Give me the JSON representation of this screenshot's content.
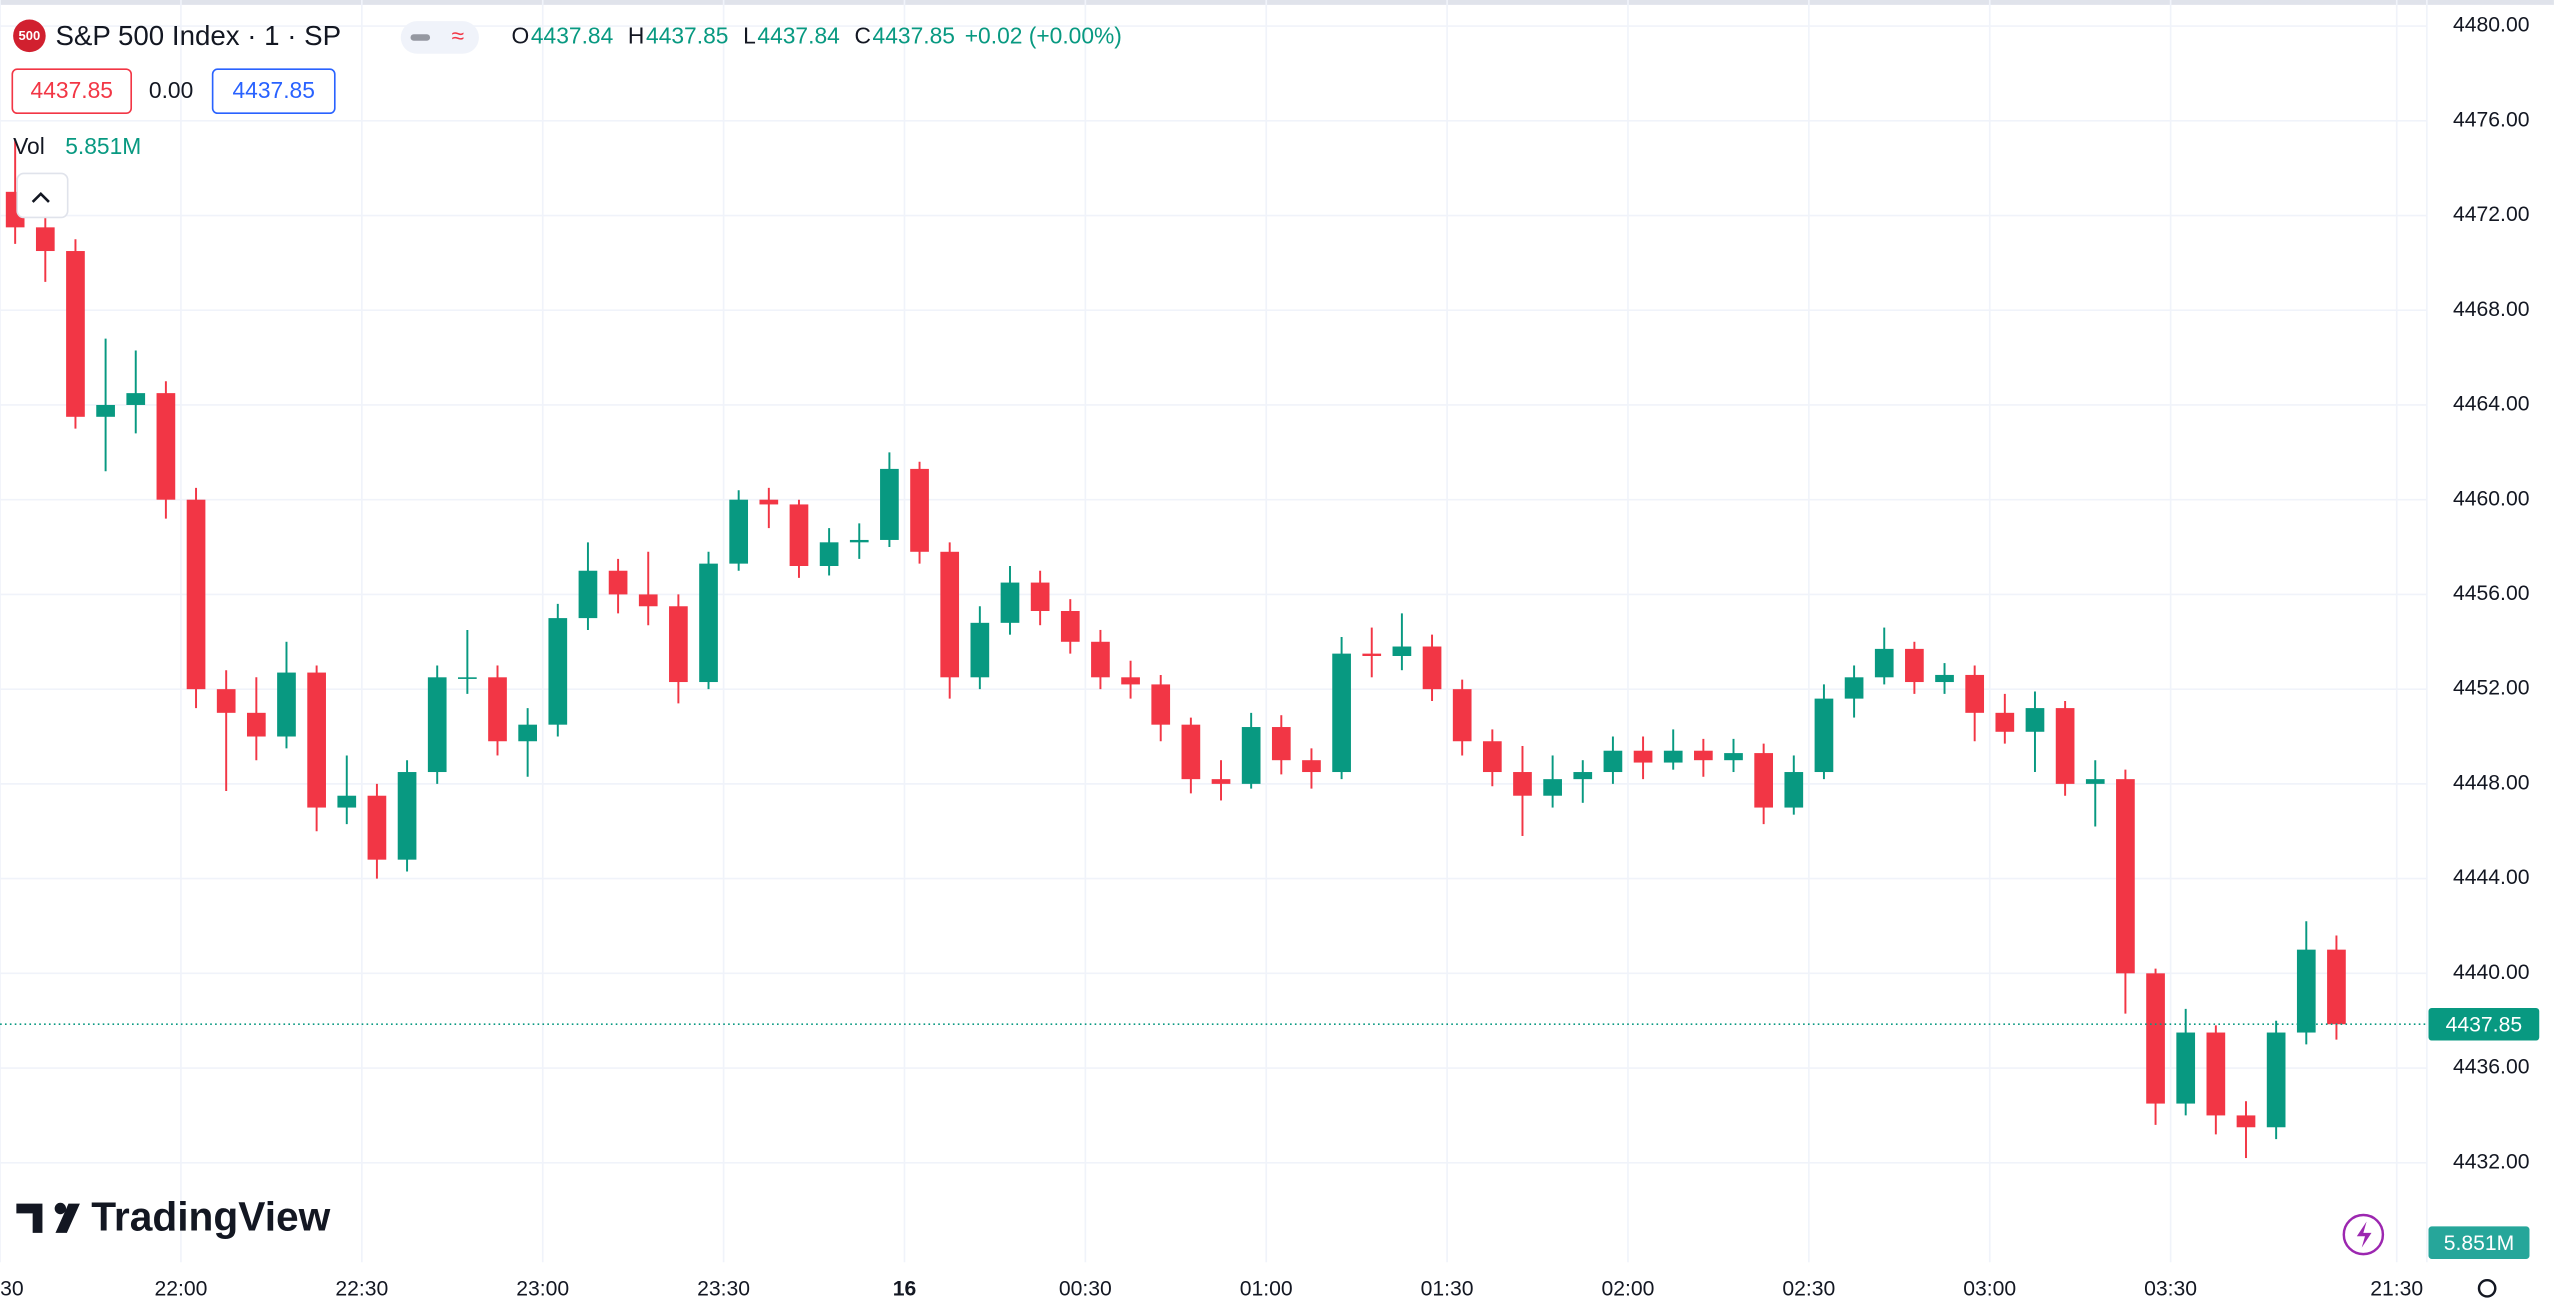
{
  "header": {
    "logo": "500",
    "symbol": "S&P 500 Index · 1 · SP",
    "ohlc": [
      {
        "key": "O",
        "value": "4437.84"
      },
      {
        "key": "H",
        "value": "4437.85"
      },
      {
        "key": "L",
        "value": "4437.84"
      },
      {
        "key": "C",
        "value": "4437.85"
      }
    ],
    "change": "+0.02 (+0.00%)",
    "sell": "4437.85",
    "spread": "0.00",
    "buy": "4437.85",
    "volume_label": "Vol",
    "volume_value": "5.851M"
  },
  "brand": "TradingView",
  "chart_data": {
    "type": "candlestick",
    "up_color": "#089981",
    "down_color": "#f23645",
    "open": [
      4473,
      4471.5,
      4470.5,
      4463.5,
      4464,
      4464.5,
      4460,
      4452,
      4451,
      4450,
      4452.7,
      4447,
      4447.5,
      4444.8,
      4448.5,
      4452.5,
      4452.5,
      4449.8,
      4450.5,
      4455,
      4457,
      4456,
      4455.5,
      4452.3,
      4457.3,
      4460,
      4459.8,
      4457.2,
      4458.2,
      4458.3,
      4461.3,
      4457.8,
      4452.5,
      4454.8,
      4456.5,
      4455.3,
      4454,
      4452.5,
      4452.2,
      4450.5,
      4448.2,
      4448,
      4450.4,
      4449,
      4448.5,
      4453.5,
      4453.4,
      4453.8,
      4452,
      4449.8,
      4448.5,
      4447.5,
      4448.2,
      4448.5,
      4449.4,
      4448.9,
      4449.4,
      4449,
      4449.3,
      4447,
      4448.5,
      4451.6,
      4452.5,
      4453.7,
      4452.3,
      4452.6,
      4451,
      4450.2,
      4451.2,
      4448,
      4448.2,
      4440,
      4434.5,
      4437.5,
      4434,
      4433.5,
      4437.5,
      4441
    ],
    "high": [
      4475.2,
      4473.5,
      4471,
      4466.8,
      4466.3,
      4465,
      4460.5,
      4452.8,
      4452.5,
      4454,
      4453,
      4449.2,
      4448,
      4449,
      4453,
      4454.5,
      4453,
      4451.2,
      4455.6,
      4458.2,
      4457.5,
      4457.8,
      4456,
      4457.8,
      4460.4,
      4460.5,
      4460,
      4458.8,
      4459,
      4462,
      4461.6,
      4458.2,
      4455.5,
      4457.2,
      4457,
      4455.8,
      4454.5,
      4453.2,
      4452.6,
      4450.8,
      4449,
      4451,
      4450.9,
      4449.5,
      4454.2,
      4454.6,
      4455.2,
      4454.3,
      4452.4,
      4450.3,
      4449.6,
      4449.2,
      4449,
      4450,
      4450,
      4450.3,
      4449.9,
      4449.9,
      4449.7,
      4449.2,
      4452.2,
      4453,
      4454.6,
      4454,
      4453.1,
      4453,
      4451.8,
      4451.9,
      4451.5,
      4449,
      4448.6,
      4440.2,
      4438.5,
      4437.8,
      4434.6,
      4438,
      4442.2,
      4441.6
    ],
    "low": [
      4470.8,
      4469.2,
      4463,
      4461.2,
      4462.8,
      4459.2,
      4451.2,
      4447.7,
      4449,
      4449.5,
      4446,
      4446.3,
      4444,
      4444.3,
      4448,
      4451.8,
      4449.2,
      4448.3,
      4450,
      4454.5,
      4455.2,
      4454.7,
      4451.4,
      4452,
      4457,
      4458.8,
      4456.7,
      4456.8,
      4457.5,
      4458,
      4457.3,
      4451.6,
      4452,
      4454.3,
      4454.7,
      4453.5,
      4452,
      4451.6,
      4449.8,
      4447.6,
      4447.3,
      4447.8,
      4448.4,
      4447.8,
      4448.2,
      4452.5,
      4452.8,
      4451.5,
      4449.2,
      4447.9,
      4445.8,
      4447,
      4447.2,
      4448,
      4448.2,
      4448.6,
      4448.3,
      4448.5,
      4446.3,
      4446.7,
      4448.2,
      4450.8,
      4452.2,
      4451.8,
      4451.8,
      4449.8,
      4449.7,
      4448.5,
      4447.5,
      4446.2,
      4438.3,
      4433.6,
      4434,
      4433.2,
      4432.2,
      4433,
      4437,
      4437.2
    ],
    "close": [
      4471.5,
      4470.5,
      4463.5,
      4464,
      4464.5,
      4460,
      4452,
      4451,
      4450,
      4452.7,
      4447,
      4447.5,
      4444.8,
      4448.5,
      4452.5,
      4452.5,
      4449.8,
      4450.5,
      4455,
      4457,
      4456,
      4455.5,
      4452.3,
      4457.3,
      4460,
      4459.8,
      4457.2,
      4458.2,
      4458.3,
      4461.3,
      4457.8,
      4452.5,
      4454.8,
      4456.5,
      4455.3,
      4454,
      4452.5,
      4452.2,
      4450.5,
      4448.2,
      4448,
      4450.4,
      4449,
      4448.5,
      4453.5,
      4453.4,
      4453.8,
      4452,
      4449.8,
      4448.5,
      4447.5,
      4448.2,
      4448.5,
      4449.4,
      4448.9,
      4449.4,
      4449,
      4449.3,
      4447,
      4448.5,
      4451.6,
      4452.5,
      4453.7,
      4452.3,
      4452.6,
      4451,
      4450.2,
      4451.2,
      4448,
      4448.2,
      4440,
      4434.5,
      4437.5,
      4434,
      4433.5,
      4437.5,
      4441,
      4437.85
    ],
    "last_price": {
      "value": 4437.85,
      "label": "4437.85"
    },
    "xlim": [
      0,
      80.5
    ],
    "xticks": [
      {
        "value": 0,
        "label": "30"
      },
      {
        "value": 6,
        "label": "22:00"
      },
      {
        "value": 12,
        "label": "22:30"
      },
      {
        "value": 18,
        "label": "23:00"
      },
      {
        "value": 24,
        "label": "23:30"
      },
      {
        "value": 30,
        "label": "16"
      },
      {
        "value": 36,
        "label": "00:30"
      },
      {
        "value": 42,
        "label": "01:00"
      },
      {
        "value": 48,
        "label": "01:30"
      },
      {
        "value": 54,
        "label": "02:00"
      },
      {
        "value": 60,
        "label": "02:30"
      },
      {
        "value": 66,
        "label": "03:00"
      },
      {
        "value": 72,
        "label": "03:30"
      },
      {
        "value": 79.5,
        "label": "21:30"
      }
    ],
    "ylim": [
      4427.8,
      4481.1
    ],
    "yticks": [
      {
        "value": 4432,
        "label": "4432.00"
      },
      {
        "value": 4436,
        "label": "4436.00"
      },
      {
        "value": 4440,
        "label": "4440.00"
      },
      {
        "value": 4444,
        "label": "4444.00"
      },
      {
        "value": 4448,
        "label": "4448.00"
      },
      {
        "value": 4452,
        "label": "4452.00"
      },
      {
        "value": 4456,
        "label": "4456.00"
      },
      {
        "value": 4460,
        "label": "4460.00"
      },
      {
        "value": 4464,
        "label": "4464.00"
      },
      {
        "value": 4468,
        "label": "4468.00"
      },
      {
        "value": 4472,
        "label": "4472.00"
      },
      {
        "value": 4476,
        "label": "4476.00"
      },
      {
        "value": 4480,
        "label": "4480.00"
      }
    ],
    "grid": true
  }
}
